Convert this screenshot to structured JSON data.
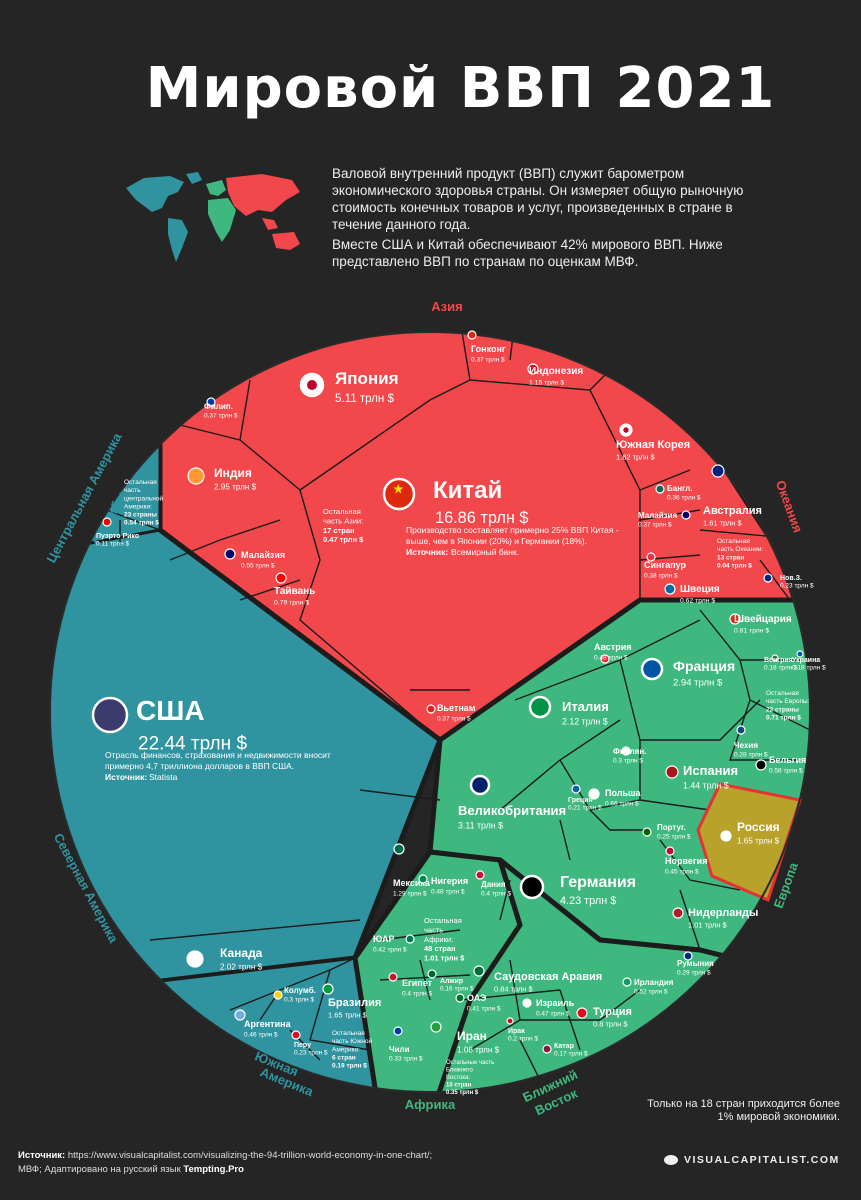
{
  "title": "Мировой ВВП 2021",
  "intro": [
    "Валовой внутренний продукт (ВВП) служит барометром экономического здоровья страны. Он измеряет общую рыночную стоимость конечных товаров и услуг, произведенных в стране в течение данного года.",
    "Вместе США и Китай обеспечивают 42% мирового ВВП. Ниже представлено ВВП по странам по оценкам МВФ."
  ],
  "note": "Только на 18 стран приходится более 1% мировой экономики.",
  "source_label": "Источник:",
  "source_text": "https://www.visualcapitalist.com/visualizing-the-94-trillion-world-economy-in-one-chart/;",
  "source_line2": "МВФ; Адаптировано на русский язык",
  "source_brand": "Tempting.Pro",
  "brand": "VISUALCAPITALIST.COM",
  "colors": {
    "asia": "#f2474b",
    "america": "#2f94a0",
    "europe": "#3eb87e",
    "africa_me": "#3eb87e",
    "russia": "#b8a22b",
    "russia_border": "#e63232",
    "bg": "#252525",
    "border": "#1c1c1c"
  },
  "chart_data": {
    "type": "voronoi-treemap",
    "unit": "трлн $",
    "regions": [
      {
        "name": "Азия",
        "color": "#f2474b"
      },
      {
        "name": "Океания",
        "color": "#f2474b"
      },
      {
        "name": "Центральная Америка и Карибы",
        "color": "#2f94a0"
      },
      {
        "name": "Северная Америка",
        "color": "#2f94a0"
      },
      {
        "name": "Южная Америка",
        "color": "#2f94a0"
      },
      {
        "name": "Европа",
        "color": "#3eb87e"
      },
      {
        "name": "Африка",
        "color": "#3eb87e"
      },
      {
        "name": "Ближний Восток",
        "color": "#3eb87e"
      }
    ],
    "countries": [
      {
        "name": "Китай",
        "value": "16.86 трлн $",
        "note": "Производство составляет примерно 25% ВВП Китая - выше, чем в Японии (20%) и Германии (18%).",
        "note_source_label": "Источник:",
        "note_source": "Всемирный банк.",
        "flag": "cn"
      },
      {
        "name": "Япония",
        "value": "5.11 трлн $",
        "flag": "jp"
      },
      {
        "name": "Индия",
        "value": "2.95 трлн $",
        "flag": "in"
      },
      {
        "name": "Южная Корея",
        "value": "1.82 трлн $",
        "flag": "kr"
      },
      {
        "name": "Индонезия",
        "value": "1.15 трлн $",
        "flag": "id"
      },
      {
        "name": "Гонконг",
        "value": "0.37 трлн $",
        "flag": "hk"
      },
      {
        "name": "Филип.",
        "value": "0.37 трлн $",
        "flag": "ph"
      },
      {
        "name": "Тайвань",
        "value": "0.79 трлн $",
        "flag": "tw"
      },
      {
        "name": "Малайзия",
        "value": "0.55 трлн $",
        "flag": "my"
      },
      {
        "name": "Остальная часть Азии:",
        "value": "0.47 трлн $",
        "extra": "17 стран"
      },
      {
        "name": "Бангл.",
        "value": "0.36 трлн $",
        "flag": "bd"
      },
      {
        "name": "Малайзия",
        "value": "0.37 трлн $",
        "flag": "my"
      },
      {
        "name": "Сингапур",
        "value": "0.38 трлн $",
        "flag": "sg"
      },
      {
        "name": "Вьетнам",
        "value": "0.37 трлн $",
        "flag": "vn"
      },
      {
        "name": "Австралия",
        "value": "1.61 трлн $",
        "flag": "au"
      },
      {
        "name": "Остальная часть Океании:",
        "value": "0.04 трлн $",
        "extra": "13 стран"
      },
      {
        "name": "Нов.З.",
        "value": "0.23 трлн $",
        "flag": "nz"
      },
      {
        "name": "США",
        "value": "22.44 трлн $",
        "note": "Отрасль финансов, страхования и недвижимости вносит примерно 4,7 триллиона долларов в ВВП США.",
        "note_source_label": "Источник:",
        "note_source": "Statista",
        "flag": "us"
      },
      {
        "name": "Канада",
        "value": "2.02 трлн $",
        "flag": "ca"
      },
      {
        "name": "Мексика",
        "value": "1.29 трлн $",
        "flag": "mx"
      },
      {
        "name": "Остальная часть центральной Америки:",
        "value": "0.54 трлн $",
        "extra": "23 страны"
      },
      {
        "name": "Пуэрто Рико",
        "value": "0.11 трлн $",
        "flag": "pr"
      },
      {
        "name": "Бразилия",
        "value": "1.65 трлн $",
        "flag": "br"
      },
      {
        "name": "Аргентина",
        "value": "0.46 трлн $",
        "flag": "ar"
      },
      {
        "name": "Колумб.",
        "value": "0.3 трлн $",
        "flag": "co"
      },
      {
        "name": "Перу",
        "value": "0.23 трлн $",
        "flag": "pe"
      },
      {
        "name": "Чили",
        "value": "0.33 трлн $",
        "flag": "cl"
      },
      {
        "name": "Остальная часть Южной Америки:",
        "value": "0.19 трлн $",
        "extra": "6 стран"
      },
      {
        "name": "Германия",
        "value": "4.23 трлн $",
        "flag": "de"
      },
      {
        "name": "Великобритания",
        "value": "3.11 трлн $",
        "flag": "gb"
      },
      {
        "name": "Франция",
        "value": "2.94 трлн $",
        "flag": "fr"
      },
      {
        "name": "Италия",
        "value": "2.12 трлн $",
        "flag": "it"
      },
      {
        "name": "Россия",
        "value": "1.65 трлн $",
        "flag": "ru"
      },
      {
        "name": "Испания",
        "value": "1.44 трлн $",
        "flag": "es"
      },
      {
        "name": "Нидерланды",
        "value": "1.01 трлн $",
        "flag": "nl"
      },
      {
        "name": "Швейцария",
        "value": "0.81 трлн $",
        "flag": "ch"
      },
      {
        "name": "Швеция",
        "value": "0.62 трлн $",
        "flag": "se"
      },
      {
        "name": "Польша",
        "value": "0.66 трлн $",
        "flag": "pl"
      },
      {
        "name": "Бельгия",
        "value": "0.58 трлн $",
        "flag": "be"
      },
      {
        "name": "Австрия",
        "value": "0.48 трлн $",
        "flag": "at"
      },
      {
        "name": "Норвегия",
        "value": "0.45 трлн $",
        "flag": "no"
      },
      {
        "name": "Дания",
        "value": "0.4 трлн $",
        "flag": "dk"
      },
      {
        "name": "Ирландия",
        "value": "0.52 трлн $",
        "flag": "ie"
      },
      {
        "name": "Финлян.",
        "value": "0.3 трлн $",
        "flag": "fi"
      },
      {
        "name": "Чехия",
        "value": "0.28 трлн $",
        "flag": "cz"
      },
      {
        "name": "Румыния",
        "value": "0.29 трлн $",
        "flag": "ro"
      },
      {
        "name": "Португ.",
        "value": "0.25 трлн $",
        "flag": "pt"
      },
      {
        "name": "Греция",
        "value": "0.21 трлн $",
        "flag": "gr"
      },
      {
        "name": "Венгрия",
        "value": "0.18 трлн $",
        "flag": "hu"
      },
      {
        "name": "Украина",
        "value": "0.18 трлн $",
        "flag": "ua"
      },
      {
        "name": "Остальная часть Европы:",
        "value": "0.71 трлн $",
        "extra": "22 страны"
      },
      {
        "name": "Нигерия",
        "value": "0.48 трлн $",
        "flag": "ng"
      },
      {
        "name": "ЮАР",
        "value": "0.42 трлн $",
        "flag": "za"
      },
      {
        "name": "Египет",
        "value": "0.4 трлн $",
        "flag": "eg"
      },
      {
        "name": "Алжир",
        "value": "0.16 трлн $",
        "flag": "dz"
      },
      {
        "name": "Остальная часть Африки:",
        "value": "1.01 трлн $",
        "extra": "48 стран"
      },
      {
        "name": "Саудовская Аравия",
        "value": "0.84 трлн $",
        "flag": "sa"
      },
      {
        "name": "Иран",
        "value": "1.08 трлн $",
        "flag": "ir"
      },
      {
        "name": "Турция",
        "value": "0.8 трлн $",
        "flag": "tr"
      },
      {
        "name": "Израиль",
        "value": "0.47 трлн $",
        "flag": "il"
      },
      {
        "name": "ОАЭ",
        "value": "0.41 трлн $",
        "flag": "ae"
      },
      {
        "name": "Ирак",
        "value": "0.2 трлн $",
        "flag": "iq"
      },
      {
        "name": "Катар",
        "value": "0.17 трлн $",
        "flag": "qa"
      },
      {
        "name": "Остальные часть Ближнего Востока:",
        "value": "0.35 трлн $",
        "extra": "10 стран"
      }
    ]
  }
}
